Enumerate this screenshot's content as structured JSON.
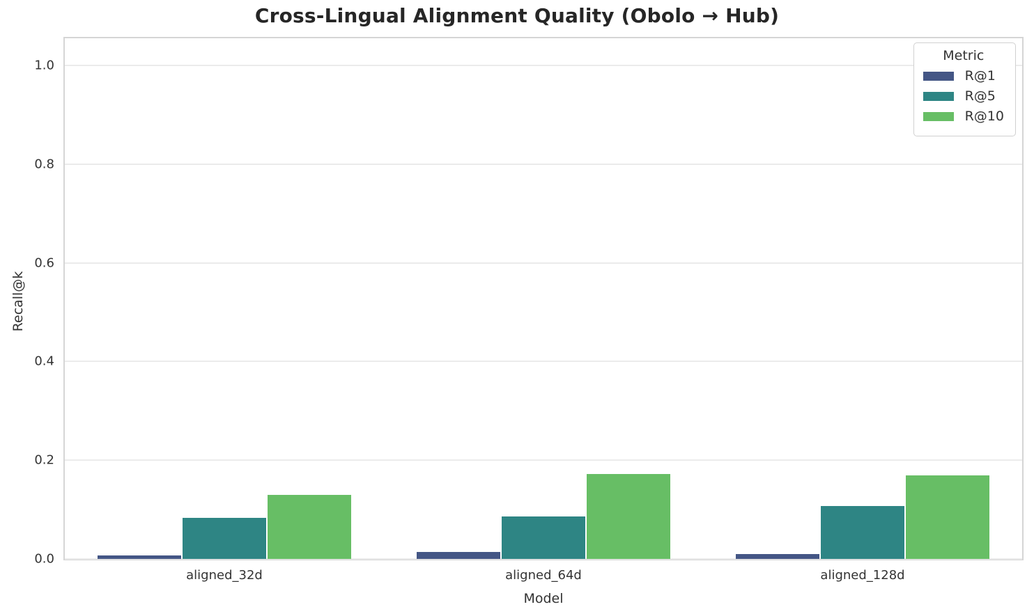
{
  "figure": {
    "title": "Cross-Lingual Alignment Quality (Obolo → Hub)"
  },
  "chart_data": {
    "type": "bar",
    "title": "Cross-Lingual Alignment Quality (Obolo → Hub)",
    "xlabel": "Model",
    "ylabel": "Recall@k",
    "categories": [
      "aligned_32d",
      "aligned_64d",
      "aligned_128d"
    ],
    "series": [
      {
        "name": "R@1",
        "color": "#445685",
        "values": [
          0.007,
          0.014,
          0.01
        ]
      },
      {
        "name": "R@5",
        "color": "#2e8584",
        "values": [
          0.083,
          0.086,
          0.107
        ]
      },
      {
        "name": "R@10",
        "color": "#67be65",
        "values": [
          0.13,
          0.172,
          0.169
        ]
      }
    ],
    "yticks": [
      0.0,
      0.2,
      0.4,
      0.6,
      0.8,
      1.0
    ],
    "ylim": [
      0,
      1.055
    ],
    "grid": "horizontal",
    "legend": {
      "title": "Metric",
      "position": "upper right"
    }
  }
}
